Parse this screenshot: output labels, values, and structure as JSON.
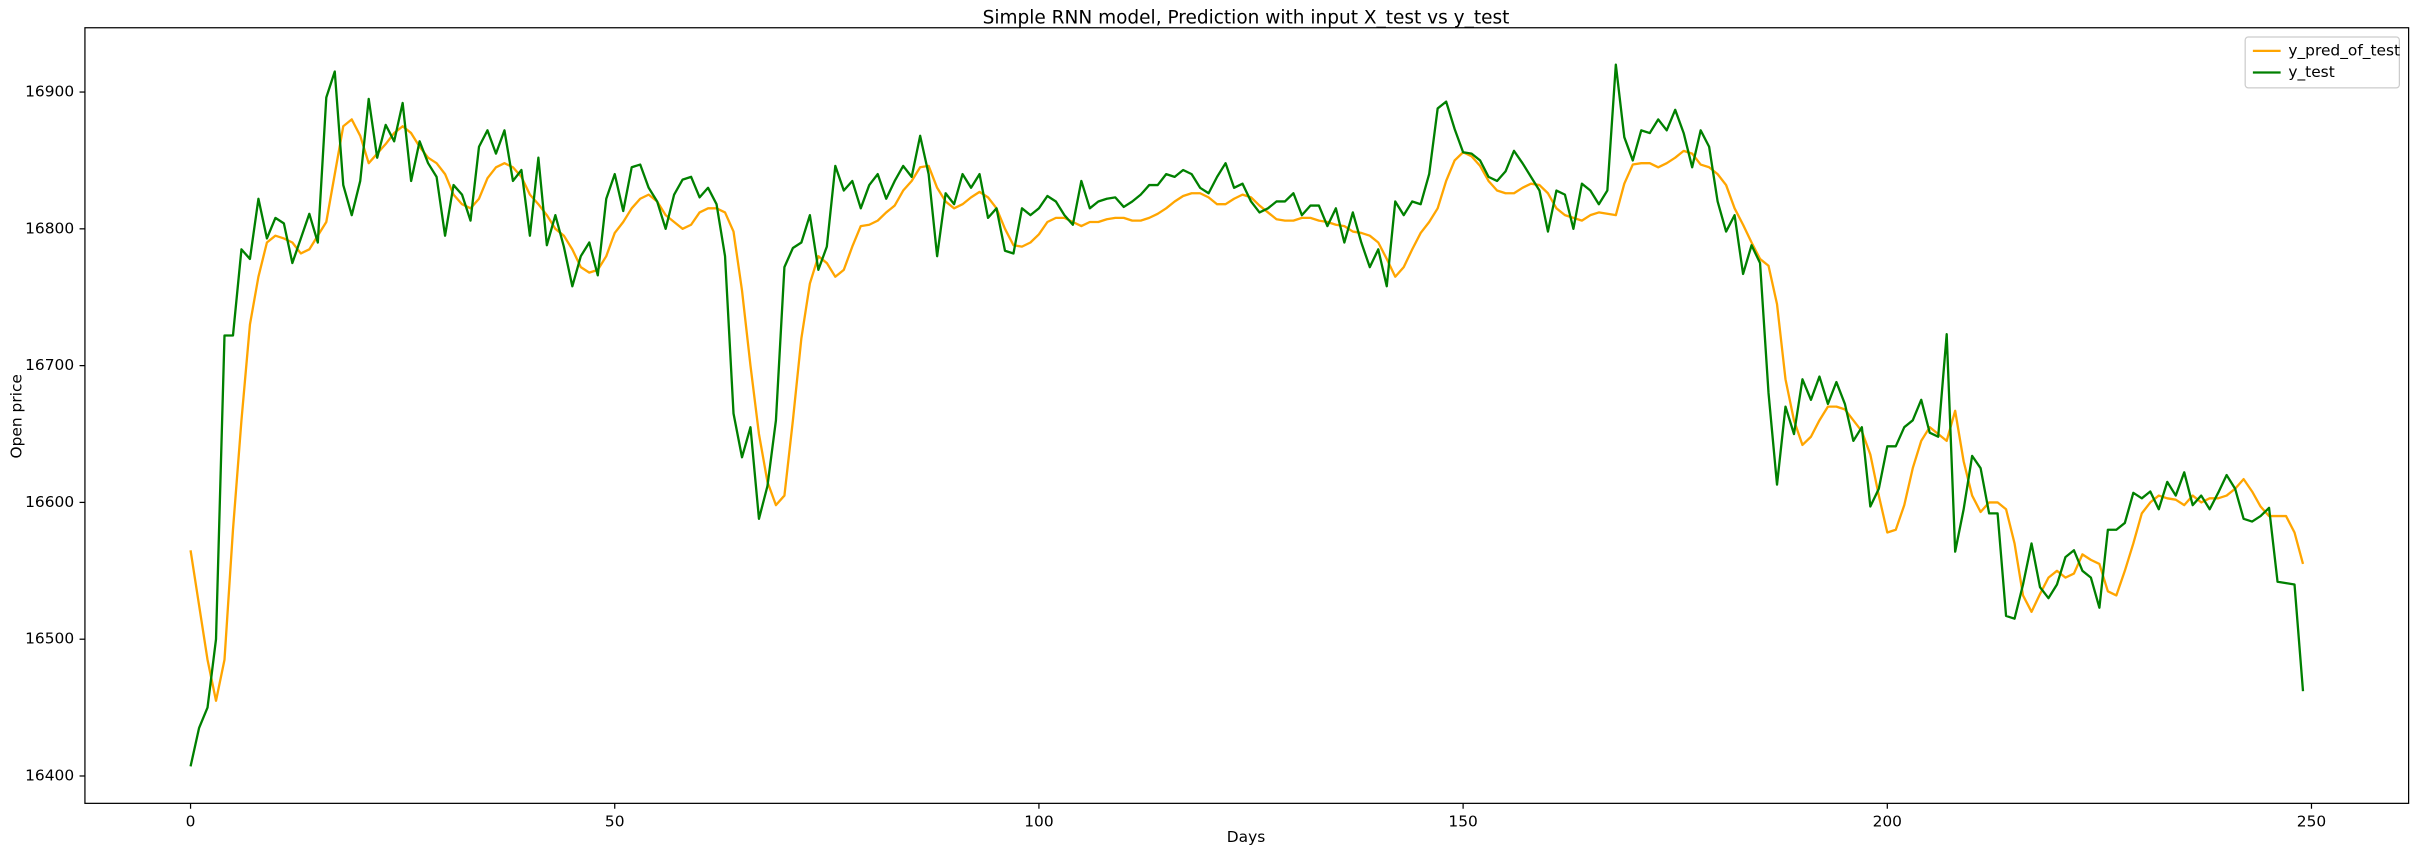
{
  "chart_data": {
    "type": "line",
    "title": "Simple RNN model, Prediction with input X_test vs y_test",
    "xlabel": "Days",
    "ylabel": "Open price",
    "x": [
      0,
      1,
      2,
      3,
      4,
      5,
      6,
      7,
      8,
      9,
      10,
      11,
      12,
      13,
      14,
      15,
      16,
      17,
      18,
      19,
      20,
      21,
      22,
      23,
      24,
      25,
      26,
      27,
      28,
      29,
      30,
      31,
      32,
      33,
      34,
      35,
      36,
      37,
      38,
      39,
      40,
      41,
      42,
      43,
      44,
      45,
      46,
      47,
      48,
      49,
      50,
      51,
      52,
      53,
      54,
      55,
      56,
      57,
      58,
      59,
      60,
      61,
      62,
      63,
      64,
      65,
      66,
      67,
      68,
      69,
      70,
      71,
      72,
      73,
      74,
      75,
      76,
      77,
      78,
      79,
      80,
      81,
      82,
      83,
      84,
      85,
      86,
      87,
      88,
      89,
      90,
      91,
      92,
      93,
      94,
      95,
      96,
      97,
      98,
      99,
      100,
      101,
      102,
      103,
      104,
      105,
      106,
      107,
      108,
      109,
      110,
      111,
      112,
      113,
      114,
      115,
      116,
      117,
      118,
      119,
      120,
      121,
      122,
      123,
      124,
      125,
      126,
      127,
      128,
      129,
      130,
      131,
      132,
      133,
      134,
      135,
      136,
      137,
      138,
      139,
      140,
      141,
      142,
      143,
      144,
      145,
      146,
      147,
      148,
      149,
      150,
      151,
      152,
      153,
      154,
      155,
      156,
      157,
      158,
      159,
      160,
      161,
      162,
      163,
      164,
      165,
      166,
      167,
      168,
      169,
      170,
      171,
      172,
      173,
      174,
      175,
      176,
      177,
      178,
      179,
      180,
      181,
      182,
      183,
      184,
      185,
      186,
      187,
      188,
      189,
      190,
      191,
      192,
      193,
      194,
      195,
      196,
      197,
      198,
      199,
      200,
      201,
      202,
      203,
      204,
      205,
      206,
      207,
      208,
      209,
      210,
      211,
      212,
      213,
      214,
      215,
      216,
      217,
      218,
      219,
      220,
      221,
      222,
      223,
      224,
      225,
      226,
      227,
      228,
      229,
      230,
      231,
      232,
      233,
      234,
      235,
      236,
      237,
      238,
      239,
      240,
      241,
      242,
      243,
      244,
      245,
      246,
      247,
      248,
      249
    ],
    "series": [
      {
        "name": "y_pred_of_test",
        "color": "#ffa500",
        "values": [
          16565,
          16525,
          16485,
          16455,
          16485,
          16580,
          16660,
          16730,
          16765,
          16790,
          16795,
          16793,
          16790,
          16782,
          16785,
          16795,
          16805,
          16840,
          16875,
          16880,
          16868,
          16848,
          16855,
          16862,
          16870,
          16875,
          16870,
          16860,
          16852,
          16848,
          16840,
          16825,
          16818,
          16815,
          16822,
          16837,
          16845,
          16848,
          16845,
          16838,
          16825,
          16818,
          16810,
          16800,
          16795,
          16785,
          16772,
          16768,
          16770,
          16780,
          16797,
          16805,
          16815,
          16822,
          16825,
          16820,
          16810,
          16805,
          16800,
          16803,
          16812,
          16815,
          16815,
          16812,
          16798,
          16755,
          16700,
          16650,
          16615,
          16598,
          16605,
          16660,
          16720,
          16760,
          16780,
          16775,
          16765,
          16770,
          16787,
          16802,
          16803,
          16806,
          16812,
          16817,
          16828,
          16835,
          16845,
          16846,
          16830,
          16820,
          16815,
          16818,
          16823,
          16827,
          16823,
          16815,
          16800,
          16788,
          16787,
          16790,
          16796,
          16805,
          16808,
          16808,
          16805,
          16802,
          16805,
          16805,
          16807,
          16808,
          16808,
          16806,
          16806,
          16808,
          16811,
          16815,
          16820,
          16824,
          16826,
          16826,
          16823,
          16818,
          16818,
          16822,
          16825,
          16823,
          16817,
          16812,
          16807,
          16806,
          16806,
          16808,
          16808,
          16806,
          16805,
          16803,
          16802,
          16798,
          16797,
          16795,
          16790,
          16778,
          16765,
          16772,
          16785,
          16797,
          16805,
          16815,
          16835,
          16850,
          16856,
          16853,
          16846,
          16835,
          16828,
          16826,
          16826,
          16830,
          16833,
          16832,
          16826,
          16815,
          16810,
          16808,
          16806,
          16810,
          16812,
          16811,
          16810,
          16833,
          16847,
          16848,
          16848,
          16845,
          16848,
          16852,
          16857,
          16855,
          16847,
          16845,
          16840,
          16832,
          16815,
          16803,
          16790,
          16778,
          16773,
          16745,
          16690,
          16660,
          16642,
          16648,
          16660,
          16670,
          16670,
          16668,
          16660,
          16652,
          16635,
          16605,
          16578,
          16580,
          16598,
          16625,
          16645,
          16655,
          16650,
          16645,
          16667,
          16630,
          16605,
          16593,
          16600,
          16600,
          16595,
          16570,
          16532,
          16520,
          16533,
          16545,
          16550,
          16545,
          16548,
          16562,
          16558,
          16555,
          16535,
          16532,
          16550,
          16570,
          16592,
          16600,
          16605,
          16603,
          16602,
          16598,
          16605,
          16600,
          16603,
          16603,
          16605,
          16610,
          16617,
          16608,
          16597,
          16590,
          16590,
          16590,
          16578,
          16555
        ]
      },
      {
        "name": "y_test",
        "color": "#008000",
        "values": [
          16407,
          16435,
          16450,
          16500,
          16722,
          16722,
          16785,
          16778,
          16822,
          16793,
          16808,
          16804,
          16775,
          16793,
          16811,
          16790,
          16896,
          16915,
          16832,
          16810,
          16835,
          16895,
          16852,
          16876,
          16864,
          16892,
          16835,
          16864,
          16848,
          16838,
          16795,
          16832,
          16825,
          16806,
          16860,
          16872,
          16855,
          16872,
          16835,
          16843,
          16795,
          16852,
          16788,
          16810,
          16787,
          16758,
          16780,
          16790,
          16766,
          16822,
          16840,
          16813,
          16845,
          16847,
          16830,
          16820,
          16800,
          16825,
          16836,
          16838,
          16823,
          16830,
          16818,
          16780,
          16665,
          16633,
          16655,
          16588,
          16612,
          16660,
          16772,
          16786,
          16790,
          16810,
          16770,
          16787,
          16846,
          16828,
          16835,
          16815,
          16832,
          16840,
          16822,
          16835,
          16846,
          16838,
          16868,
          16840,
          16780,
          16826,
          16818,
          16840,
          16830,
          16840,
          16808,
          16815,
          16784,
          16782,
          16815,
          16810,
          16815,
          16824,
          16820,
          16810,
          16803,
          16835,
          16815,
          16820,
          16822,
          16823,
          16816,
          16820,
          16825,
          16832,
          16832,
          16840,
          16838,
          16843,
          16840,
          16830,
          16826,
          16838,
          16848,
          16830,
          16833,
          16820,
          16812,
          16815,
          16820,
          16820,
          16826,
          16810,
          16817,
          16817,
          16802,
          16815,
          16790,
          16812,
          16790,
          16772,
          16785,
          16758,
          16820,
          16810,
          16820,
          16818,
          16840,
          16888,
          16893,
          16873,
          16856,
          16855,
          16850,
          16838,
          16835,
          16842,
          16857,
          16848,
          16838,
          16828,
          16798,
          16828,
          16825,
          16800,
          16833,
          16828,
          16818,
          16828,
          16920,
          16867,
          16850,
          16872,
          16870,
          16880,
          16872,
          16887,
          16870,
          16845,
          16872,
          16860,
          16820,
          16798,
          16810,
          16767,
          16788,
          16775,
          16680,
          16613,
          16670,
          16650,
          16690,
          16675,
          16692,
          16672,
          16688,
          16672,
          16645,
          16655,
          16597,
          16610,
          16641,
          16641,
          16655,
          16660,
          16675,
          16651,
          16648,
          16723,
          16564,
          16595,
          16634,
          16625,
          16592,
          16592,
          16517,
          16515,
          16540,
          16570,
          16538,
          16530,
          16540,
          16560,
          16565,
          16550,
          16545,
          16523,
          16580,
          16580,
          16585,
          16607,
          16603,
          16608,
          16595,
          16615,
          16605,
          16622,
          16598,
          16605,
          16595,
          16607,
          16620,
          16610,
          16588,
          16586,
          16590,
          16596,
          16542,
          16541,
          16540,
          16462
        ]
      }
    ],
    "xlim": [
      -12.45,
      261.45
    ],
    "xticks": [
      0,
      50,
      100,
      150,
      200,
      250
    ],
    "ylim": [
      16380,
      16947
    ],
    "yticks": [
      16400,
      16500,
      16600,
      16700,
      16800,
      16900
    ],
    "legend": "upper right"
  }
}
